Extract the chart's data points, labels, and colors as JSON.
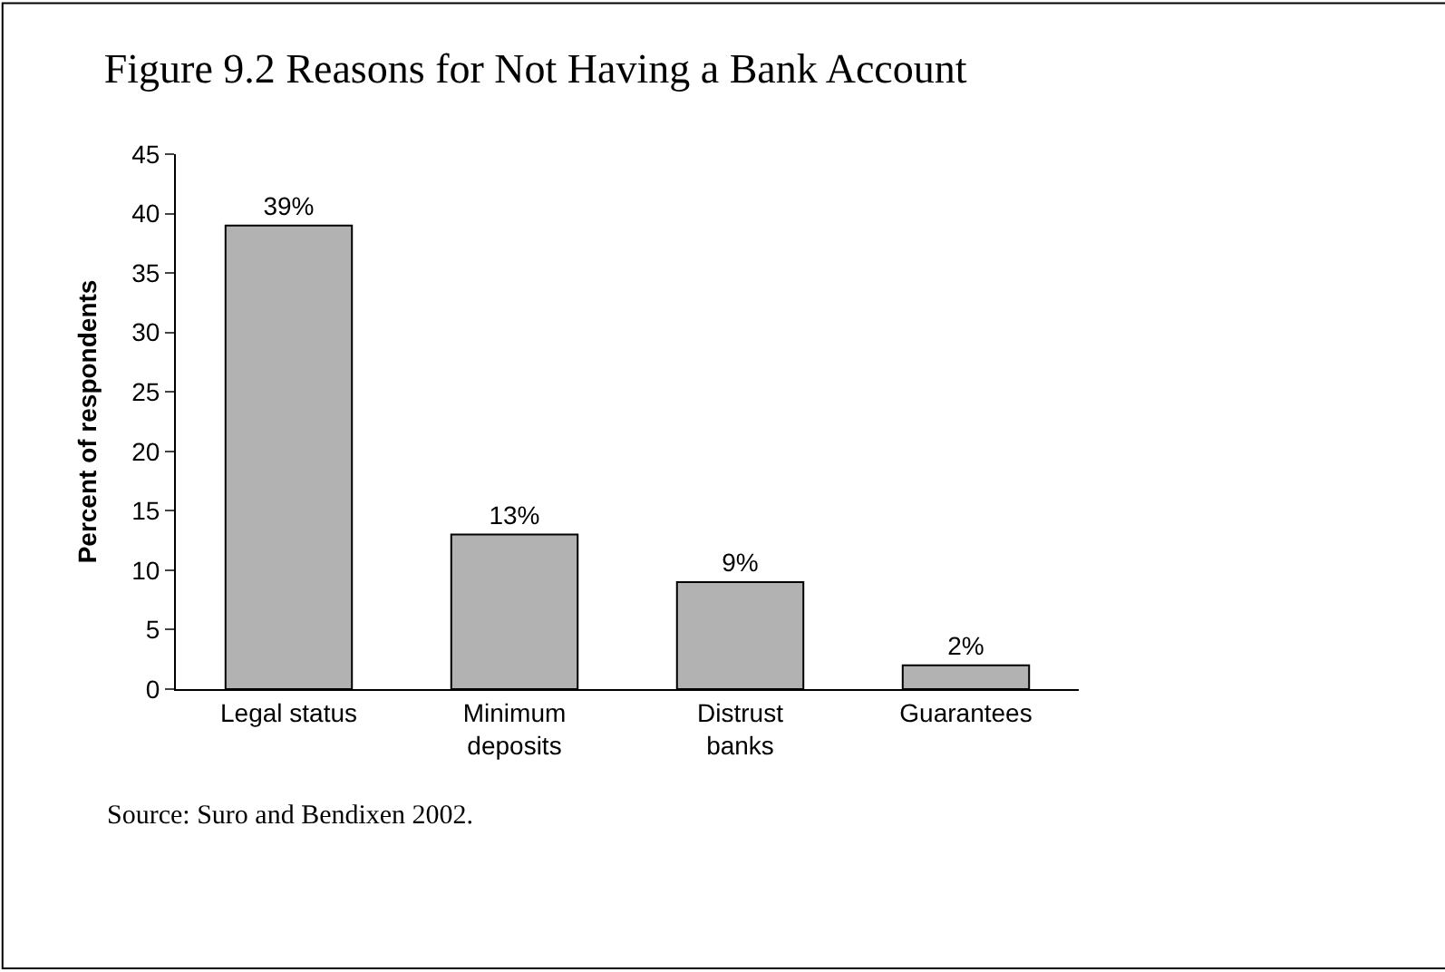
{
  "chart_data": {
    "type": "bar",
    "title": "Figure 9.2 Reasons for Not Having a Bank Account",
    "ylabel": "Percent of respondents",
    "categories": [
      "Legal status",
      "Minimum deposits",
      "Distrust banks",
      "Guarantees"
    ],
    "values": [
      39,
      13,
      9,
      2
    ],
    "value_labels": [
      "39%",
      "13%",
      "9%",
      "2%"
    ],
    "color": "#b2b2b2",
    "ylim": [
      0,
      45
    ],
    "yticks": [
      0,
      5,
      10,
      15,
      20,
      25,
      30,
      35,
      40,
      45
    ],
    "legend": false,
    "annotations": [
      "Source: Suro and Bendixen 2002."
    ]
  }
}
